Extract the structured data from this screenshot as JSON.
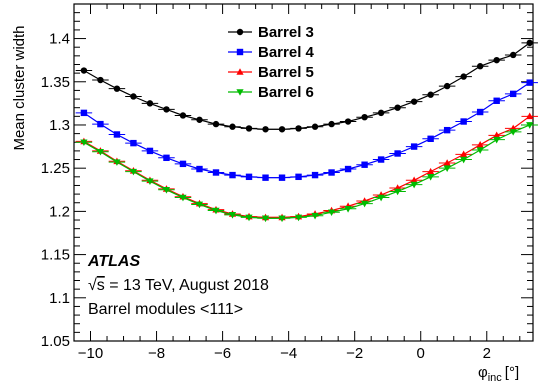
{
  "chart_data": {
    "type": "line",
    "title": "",
    "xlabel": "φ",
    "xlabel_sub": "inc",
    "xlabel_unit": "[°]",
    "ylabel": "Mean cluster width",
    "xlim": [
      -10.5,
      3.4
    ],
    "ylim": [
      1.05,
      1.44
    ],
    "grid": false,
    "legend_position": "top-center",
    "x_ticks": [
      -10,
      -8,
      -6,
      -4,
      -2,
      0,
      2
    ],
    "y_ticks": [
      1.05,
      1.1,
      1.15,
      1.2,
      1.25,
      1.3,
      1.35,
      1.4
    ],
    "x_tick_labels": [
      "−10",
      "−8",
      "−6",
      "−4",
      "−2",
      "0",
      "2"
    ],
    "y_tick_labels": [
      "1.05",
      "1.1",
      "1.15",
      "1.2",
      "1.25",
      "1.3",
      "1.35",
      "1.4"
    ],
    "x": [
      -10.2,
      -9.7,
      -9.2,
      -8.7,
      -8.2,
      -7.7,
      -7.2,
      -6.7,
      -6.2,
      -5.7,
      -5.2,
      -4.7,
      -4.2,
      -3.7,
      -3.2,
      -2.7,
      -2.2,
      -1.7,
      -1.2,
      -0.7,
      -0.2,
      0.3,
      0.8,
      1.3,
      1.8,
      2.3,
      2.8,
      3.3
    ],
    "series": [
      {
        "name": "Barrel 3",
        "color": "#000000",
        "marker": "circle",
        "values": [
          1.363,
          1.352,
          1.342,
          1.333,
          1.325,
          1.318,
          1.311,
          1.306,
          1.301,
          1.298,
          1.296,
          1.295,
          1.295,
          1.296,
          1.298,
          1.301,
          1.304,
          1.309,
          1.314,
          1.32,
          1.327,
          1.335,
          1.345,
          1.356,
          1.368,
          1.375,
          1.381,
          1.395
        ]
      },
      {
        "name": "Barrel 4",
        "color": "#0000ff",
        "marker": "square",
        "values": [
          1.314,
          1.301,
          1.289,
          1.279,
          1.27,
          1.262,
          1.255,
          1.249,
          1.245,
          1.242,
          1.24,
          1.239,
          1.239,
          1.24,
          1.242,
          1.245,
          1.249,
          1.254,
          1.26,
          1.267,
          1.275,
          1.284,
          1.294,
          1.304,
          1.315,
          1.328,
          1.336,
          1.349
        ]
      },
      {
        "name": "Barrel 5",
        "color": "#ff0000",
        "marker": "triangle",
        "values": [
          1.281,
          1.27,
          1.258,
          1.247,
          1.236,
          1.226,
          1.217,
          1.209,
          1.202,
          1.197,
          1.194,
          1.193,
          1.193,
          1.194,
          1.197,
          1.201,
          1.206,
          1.212,
          1.219,
          1.227,
          1.236,
          1.246,
          1.256,
          1.266,
          1.277,
          1.288,
          1.296,
          1.31
        ]
      },
      {
        "name": "Barrel 6",
        "color": "#00bb00",
        "marker": "triangle-down",
        "values": [
          1.28,
          1.269,
          1.257,
          1.246,
          1.235,
          1.225,
          1.216,
          1.208,
          1.201,
          1.196,
          1.193,
          1.192,
          1.192,
          1.193,
          1.195,
          1.199,
          1.203,
          1.209,
          1.216,
          1.223,
          1.231,
          1.24,
          1.25,
          1.26,
          1.271,
          1.283,
          1.292,
          1.3
        ]
      }
    ],
    "annotations": {
      "experiment": "ATLAS",
      "energy_sqrt": "s",
      "energy_prefix": "√",
      "energy_rest": " = 13 TeV, August 2018",
      "modules": "Barrel modules <111>"
    }
  }
}
